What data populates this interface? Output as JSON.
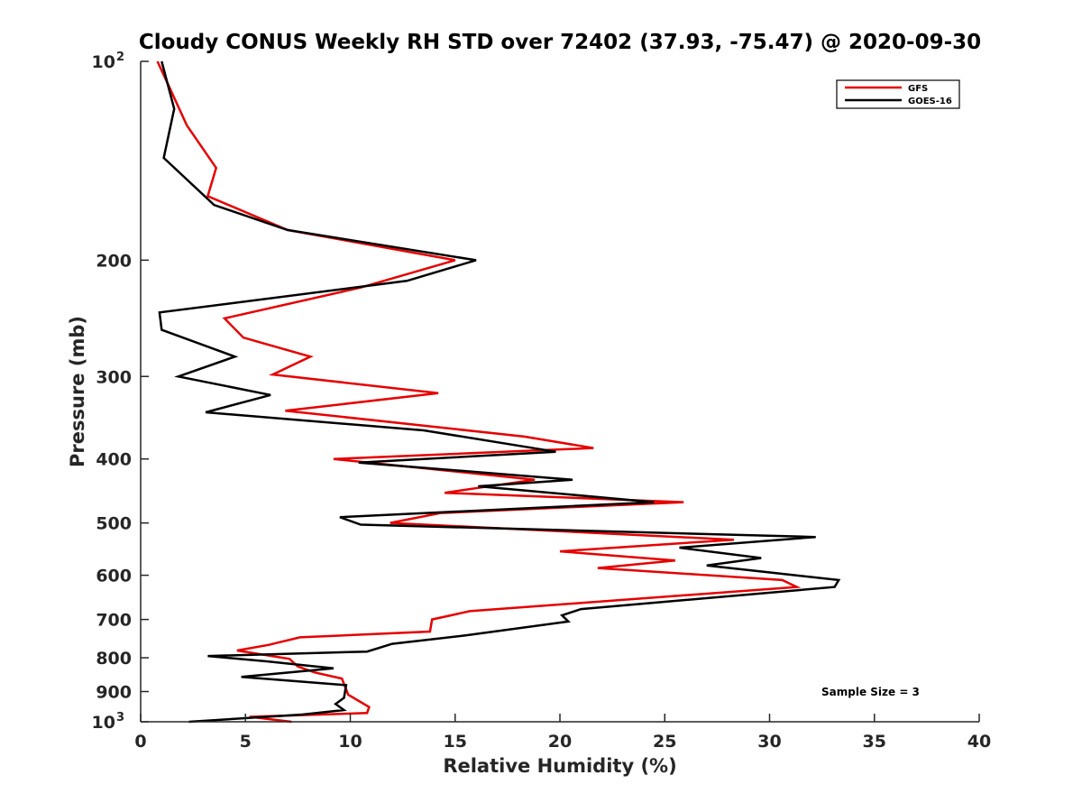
{
  "chart_data": {
    "type": "line",
    "title": "Cloudy CONUS Weekly RH STD over 72402 (37.93, -75.47) @ 2020-09-30",
    "xlabel": "Relative Humidity (%)",
    "ylabel": "Pressure (mb)",
    "xlim": [
      0,
      40
    ],
    "ylim": [
      100,
      1000
    ],
    "y_scale": "log",
    "y_reversed": true,
    "grid": false,
    "legend_position": "top-right",
    "x_ticks": [
      "0",
      "5",
      "10",
      "15",
      "20",
      "25",
      "30",
      "35",
      "40"
    ],
    "y_ticks": [
      {
        "value": 100,
        "label": "10",
        "sup": "2"
      },
      {
        "value": 200,
        "label": "200",
        "sup": ""
      },
      {
        "value": 300,
        "label": "300",
        "sup": ""
      },
      {
        "value": 400,
        "label": "400",
        "sup": ""
      },
      {
        "value": 500,
        "label": "500",
        "sup": ""
      },
      {
        "value": 600,
        "label": "600",
        "sup": ""
      },
      {
        "value": 700,
        "label": "700",
        "sup": ""
      },
      {
        "value": 800,
        "label": "800",
        "sup": ""
      },
      {
        "value": 900,
        "label": "900",
        "sup": ""
      },
      {
        "value": 1000,
        "label": "10",
        "sup": "3"
      }
    ],
    "annotation": "Sample Size = 3",
    "series": [
      {
        "name": "GFS",
        "color": "#e60000",
        "points": [
          [
            0.8,
            100
          ],
          [
            1.4,
            110
          ],
          [
            2.2,
            125
          ],
          [
            3.6,
            145
          ],
          [
            3.2,
            160
          ],
          [
            7.0,
            180
          ],
          [
            15.0,
            200
          ],
          [
            10.5,
            220
          ],
          [
            4.0,
            245
          ],
          [
            4.9,
            262
          ],
          [
            8.1,
            280
          ],
          [
            6.3,
            298
          ],
          [
            14.2,
            318
          ],
          [
            6.9,
            338
          ],
          [
            18.3,
            370
          ],
          [
            21.6,
            385
          ],
          [
            9.2,
            400
          ],
          [
            18.8,
            430
          ],
          [
            14.5,
            450
          ],
          [
            25.9,
            465
          ],
          [
            14.3,
            483
          ],
          [
            11.9,
            500
          ],
          [
            28.3,
            530
          ],
          [
            20.0,
            552
          ],
          [
            25.5,
            570
          ],
          [
            21.8,
            585
          ],
          [
            30.6,
            610
          ],
          [
            31.3,
            625
          ],
          [
            15.7,
            680
          ],
          [
            13.9,
            700
          ],
          [
            13.8,
            730
          ],
          [
            7.6,
            745
          ],
          [
            6.1,
            765
          ],
          [
            4.6,
            780
          ],
          [
            7.1,
            803
          ],
          [
            7.5,
            825
          ],
          [
            8.3,
            842
          ],
          [
            9.6,
            860
          ],
          [
            9.9,
            910
          ],
          [
            10.9,
            950
          ],
          [
            10.8,
            970
          ],
          [
            5.2,
            983
          ],
          [
            7.2,
            1000
          ]
        ]
      },
      {
        "name": "GOES-16",
        "color": "#000000",
        "points": [
          [
            1.0,
            100
          ],
          [
            1.6,
            118
          ],
          [
            1.1,
            140
          ],
          [
            3.5,
            165
          ],
          [
            7.0,
            180
          ],
          [
            16.0,
            200
          ],
          [
            12.7,
            215
          ],
          [
            0.9,
            240
          ],
          [
            1.0,
            255
          ],
          [
            4.5,
            280
          ],
          [
            1.8,
            300
          ],
          [
            6.2,
            320
          ],
          [
            3.1,
            340
          ],
          [
            13.5,
            362
          ],
          [
            19.8,
            390
          ],
          [
            10.4,
            405
          ],
          [
            20.6,
            430
          ],
          [
            16.1,
            440
          ],
          [
            24.5,
            465
          ],
          [
            9.5,
            490
          ],
          [
            10.5,
            503
          ],
          [
            32.2,
            525
          ],
          [
            25.7,
            545
          ],
          [
            29.6,
            565
          ],
          [
            27.0,
            580
          ],
          [
            33.3,
            610
          ],
          [
            33.1,
            625
          ],
          [
            21.0,
            675
          ],
          [
            20.1,
            690
          ],
          [
            20.4,
            705
          ],
          [
            15.5,
            740
          ],
          [
            12.0,
            762
          ],
          [
            10.8,
            783
          ],
          [
            3.2,
            795
          ],
          [
            6.0,
            810
          ],
          [
            9.2,
            830
          ],
          [
            4.8,
            855
          ],
          [
            9.8,
            880
          ],
          [
            9.7,
            920
          ],
          [
            9.3,
            940
          ],
          [
            9.7,
            960
          ],
          [
            7.7,
            975
          ],
          [
            2.3,
            1000
          ]
        ]
      }
    ]
  }
}
